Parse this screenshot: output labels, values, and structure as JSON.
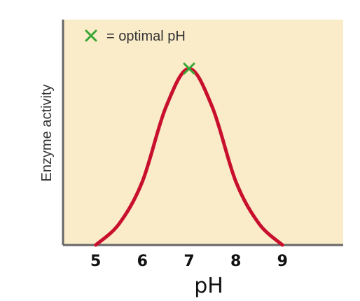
{
  "chart_data": {
    "type": "line",
    "xlabel": "pH",
    "ylabel": "Enzyme activity",
    "xlim": [
      4.3,
      10.3
    ],
    "ylim": [
      0,
      1
    ],
    "x_ticks": [
      "5",
      "6",
      "7",
      "8",
      "9"
    ],
    "grid": false,
    "series": [
      {
        "x": [
          5,
          5.5,
          6,
          6.5,
          7,
          7.5,
          8,
          8.5,
          9
        ],
        "values": [
          0.0,
          0.12,
          0.36,
          0.78,
          1.0,
          0.78,
          0.36,
          0.12,
          0.0
        ]
      }
    ],
    "annotations": {
      "optimum": {
        "x": 7,
        "y": 1.0
      },
      "legend_text": "= optimal pH",
      "legend_placement": "top-left"
    },
    "colors": {
      "background": "#fbecc9",
      "curve": "#c8102e",
      "marker": "#3aa635",
      "axis": "#666666"
    }
  }
}
